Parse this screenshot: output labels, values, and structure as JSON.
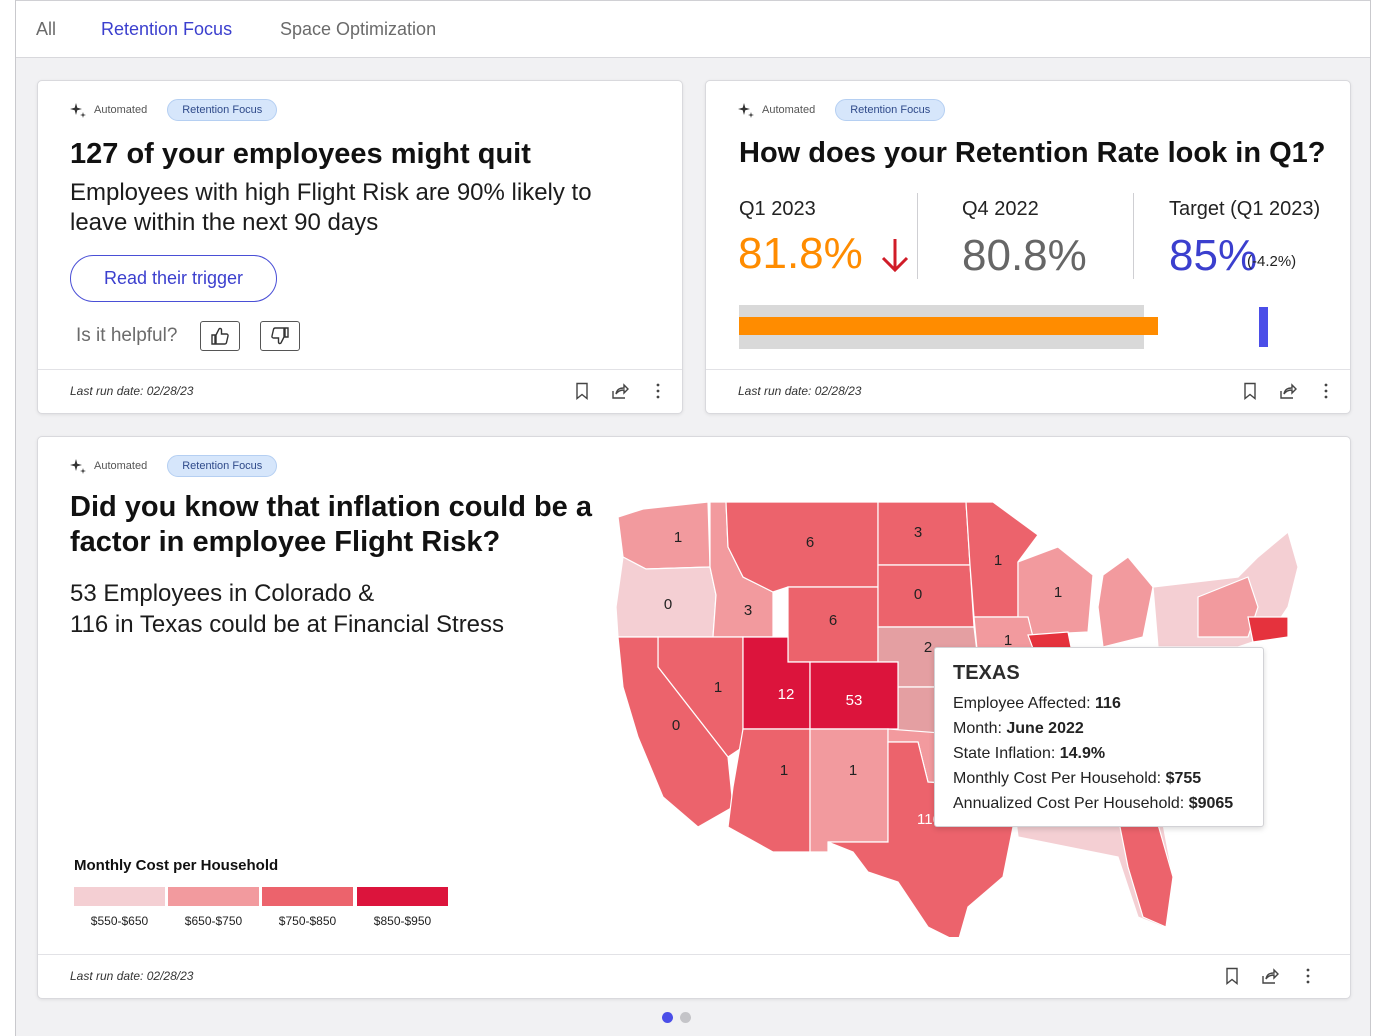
{
  "tabs": [
    {
      "label": "All"
    },
    {
      "label": "Retention Focus"
    },
    {
      "label": "Space Optimization"
    }
  ],
  "card1": {
    "automated": "Automated",
    "tag": "Retention Focus",
    "title": "127 of your employees might quit",
    "subtitle_line1": "Employees with high Flight Risk are 90% likely to",
    "subtitle_line2": "leave within the next 90 days",
    "button": "Read their trigger",
    "helpful": "Is it helpful?",
    "last_run": "Last run date: 02/28/23"
  },
  "card2": {
    "automated": "Automated",
    "tag": "Retention Focus",
    "title": "How does your Retention Rate look in Q1?",
    "q1_label": "Q1 2023",
    "q1_value": "81.8%",
    "q4_label": "Q4 2022",
    "q4_value": "80.8%",
    "target_label": "Target (Q1 2023)",
    "target_value": "85%",
    "target_delta": "(-4.2%)",
    "bar": {
      "q1_pct": 81.8,
      "q4_pct": 80.8,
      "target_pct": 85
    },
    "last_run": "Last run date: 02/28/23",
    "colors": {
      "q1": "#ff8c00",
      "q4": "#d9d9d9",
      "target": "#4b4ee8",
      "down_arrow": "#d01c28"
    }
  },
  "card3": {
    "automated": "Automated",
    "tag": "Retention Focus",
    "title_line1": "Did you know that inflation could be a",
    "title_line2": "factor in employee Flight Risk?",
    "text_line1": "53 Employees in Colorado &",
    "text_line2": "116 in Texas could be at Financial Stress",
    "legend_title": "Monthly Cost per Household",
    "legend": [
      {
        "label": "$550-$650",
        "color": "#f4cfd3"
      },
      {
        "label": "$650-$750",
        "color": "#f29a9e"
      },
      {
        "label": "$750-$850",
        "color": "#ec636c"
      },
      {
        "label": "$850-$950",
        "color": "#dc143c"
      }
    ],
    "map_labels": [
      "1",
      "6",
      "3",
      "0",
      "3",
      "6",
      "0",
      "1",
      "1",
      "1",
      "2",
      "1",
      "12",
      "53",
      "0",
      "1",
      "1",
      "116"
    ],
    "tooltip": {
      "title": "TEXAS",
      "employee_label": "Employee Affected:",
      "employee_value": "116",
      "month_label": "Month:",
      "month_value": "June 2022",
      "inflation_label": "State Inflation:",
      "inflation_value": "14.9%",
      "monthly_label": "Monthly Cost Per Household:",
      "monthly_value": "$755",
      "annual_label": "Annualized Cost Per Household:",
      "annual_value": "$9065"
    },
    "last_run": "Last run date: 02/28/23"
  },
  "pagination": {
    "active_color": "#4b4ee8",
    "inactive_color": "#c4c4c8"
  }
}
